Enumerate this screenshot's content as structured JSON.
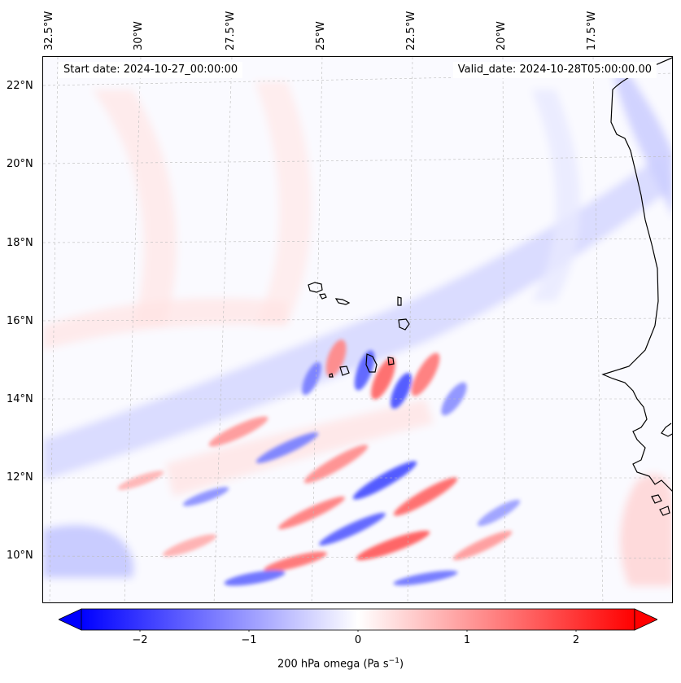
{
  "header": {
    "start_date": "Start date: 2024-10-27_00:00:00",
    "valid_date": "Valid_date: 2024-10-28T05:00:00.00"
  },
  "axes": {
    "longitude_labels": [
      "32.5°W",
      "30°W",
      "27.5°W",
      "25°W",
      "22.5°W",
      "20°W",
      "17.5°W"
    ],
    "latitude_labels": [
      "22°N",
      "20°N",
      "18°N",
      "16°N",
      "14°N",
      "12°N",
      "10°N"
    ]
  },
  "colorbar": {
    "title": "200 hPa omega (Pa s",
    "title_exponent": "−1",
    "title_close": ")",
    "ticks": [
      "−2",
      "−1",
      "0",
      "1",
      "2"
    ],
    "range": [
      -2.6,
      2.6
    ],
    "colors": {
      "negative": "#0000ff",
      "neutral": "#ffffff",
      "positive": "#ff0000"
    }
  },
  "map": {
    "projection_note": "",
    "coastline_color": "#000000",
    "gridline_color": "#bbbbbb"
  }
}
